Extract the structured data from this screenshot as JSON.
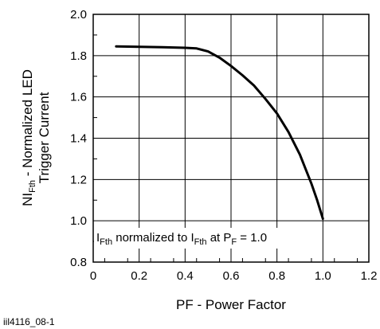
{
  "chart_data": {
    "type": "line",
    "xlim": [
      0,
      1.2
    ],
    "ylim": [
      0.8,
      2.0
    ],
    "grid": true,
    "xticks": [
      "0",
      "0.2",
      "0.4",
      "0.6",
      "0.8",
      "1.0",
      "1.2"
    ],
    "yticks": [
      "0.8",
      "1.0",
      "1.2",
      "1.4",
      "1.6",
      "1.8",
      "2.0"
    ],
    "xlabel": "PF - Power Factor",
    "ylabel": {
      "line1_prefix": "NI",
      "line1_sub": "Fth",
      "line1_suffix": " - Normalized LED",
      "line2": "Trigger Current"
    },
    "annotation": {
      "t1": "I",
      "s1": "Fth",
      "t2": " normalized to I",
      "s2": "Fth",
      "t3": " at P",
      "s3": "F",
      "t4": " = 1.0"
    },
    "series": [
      {
        "x": [
          0.1,
          0.2,
          0.3,
          0.4,
          0.45,
          0.5,
          0.55,
          0.6,
          0.65,
          0.7,
          0.75,
          0.8,
          0.85,
          0.9,
          0.95,
          0.975,
          1.0
        ],
        "y": [
          1.845,
          1.843,
          1.841,
          1.838,
          1.835,
          1.82,
          1.79,
          1.75,
          1.705,
          1.655,
          1.59,
          1.52,
          1.43,
          1.32,
          1.18,
          1.1,
          1.01
        ]
      }
    ]
  },
  "figure_id": "iil4116_08-1"
}
